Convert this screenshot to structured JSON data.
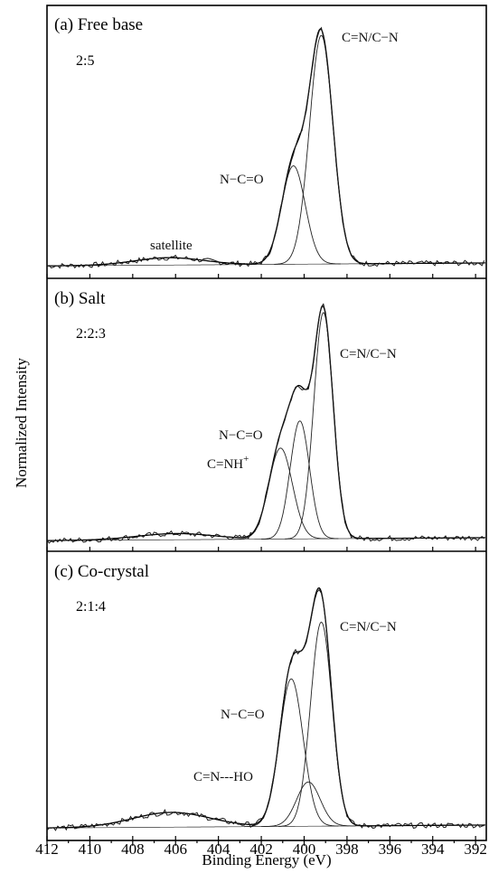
{
  "chart_data": {
    "type": "line",
    "xlabel": "Binding Energy (eV)",
    "ylabel": "Normalized Intensity",
    "xlim": [
      412,
      391.5
    ],
    "x_reversed": true,
    "x_ticks": [
      412,
      410,
      408,
      406,
      404,
      402,
      400,
      398,
      396,
      394,
      392
    ],
    "legend": "none",
    "grid": false,
    "panels": [
      {
        "title": "(a) Free base",
        "ratio": "2:5",
        "baseline_level": 0.02,
        "satellite": {
          "center": 406.3,
          "width": 1.6,
          "amplitude": 0.03
        },
        "components": [
          {
            "label": "N−C=O",
            "center": 400.5,
            "sigma": 0.55,
            "amplitude": 0.4
          },
          {
            "label": "C=N/C−N",
            "center": 399.2,
            "sigma": 0.55,
            "amplitude": 0.93
          }
        ],
        "annotations": [
          {
            "text": "C=N/C−N",
            "target": "C=N/C−N"
          },
          {
            "text": "N−C=O",
            "target": "N−C=O"
          },
          {
            "text": "satellite",
            "target": "satellite"
          }
        ]
      },
      {
        "title": "(b) Salt",
        "ratio": "2:2:3",
        "baseline_level": 0.02,
        "satellite": {
          "center": 406.0,
          "width": 1.8,
          "amplitude": 0.025
        },
        "components": [
          {
            "label": "C=NH⁺",
            "center": 401.1,
            "sigma": 0.55,
            "amplitude": 0.37
          },
          {
            "label": "N−C=O",
            "center": 400.2,
            "sigma": 0.45,
            "amplitude": 0.48
          },
          {
            "label": "C=N/C−N",
            "center": 399.1,
            "sigma": 0.45,
            "amplitude": 0.92
          }
        ],
        "annotations": [
          {
            "text": "C=N/C−N",
            "target": "C=N/C−N"
          },
          {
            "text": "N−C=O",
            "target": "N−C=O"
          },
          {
            "text": "C=NH",
            "superscript": "+",
            "target": "C=NH⁺"
          }
        ]
      },
      {
        "title": "(c) Co-crystal",
        "ratio": "2:1:4",
        "baseline_level": 0.02,
        "satellite": {
          "center": 406.2,
          "width": 1.8,
          "amplitude": 0.06
        },
        "components": [
          {
            "label": "N−C=O",
            "center": 400.6,
            "sigma": 0.55,
            "amplitude": 0.6
          },
          {
            "label": "C=N---HO",
            "center": 399.8,
            "sigma": 0.55,
            "amplitude": 0.18
          },
          {
            "label": "C=N/C−N",
            "center": 399.2,
            "sigma": 0.5,
            "amplitude": 0.83
          }
        ],
        "annotations": [
          {
            "text": "C=N/C−N",
            "target": "C=N/C−N"
          },
          {
            "text": "N−C=O",
            "target": "N−C=O"
          },
          {
            "text": "C=N---HO",
            "target": "C=N---HO"
          }
        ]
      }
    ]
  }
}
